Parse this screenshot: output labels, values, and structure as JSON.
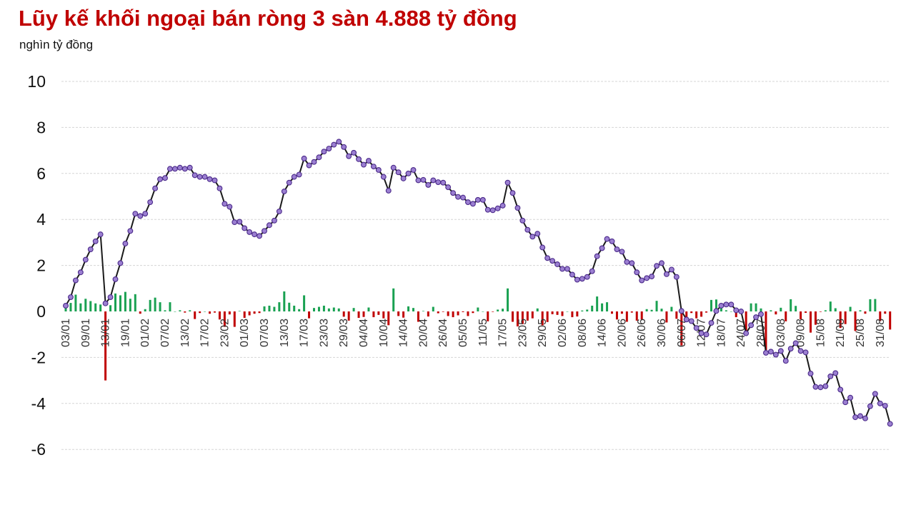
{
  "title": "Lũy kế khối ngoại bán ròng 3 sàn 4.888 tỷ đồng",
  "subtitle": "nghìn tỷ đồng",
  "colors": {
    "title": "#c00000",
    "positive_bar": "#1aa152",
    "negative_bar": "#c00000",
    "line": "#1a1a1a",
    "marker_fill": "#9b7fd1",
    "marker_stroke": "#4b2a8a",
    "grid": "#d5d5d5"
  },
  "chart_data": {
    "type": "bar+line",
    "yticks": [
      10,
      8,
      6,
      4,
      2,
      0,
      -2,
      -4,
      -6
    ],
    "ylim": [
      -6.5,
      10.5
    ],
    "grid": "horizontal dashed",
    "legend": "none",
    "xtick_labels": [
      "03/01",
      "09/01",
      "13/01",
      "19/01",
      "01/02",
      "07/02",
      "13/02",
      "17/02",
      "23/02",
      "01/03",
      "07/03",
      "13/03",
      "17/03",
      "23/03",
      "29/03",
      "04/04",
      "10/04",
      "14/04",
      "20/04",
      "26/04",
      "05/05",
      "11/05",
      "17/05",
      "23/05",
      "29/05",
      "02/06",
      "08/06",
      "14/06",
      "20/06",
      "26/06",
      "30/06",
      "06/07",
      "12/07",
      "18/07",
      "24/07",
      "28/07",
      "03/08",
      "09/08",
      "15/08",
      "21/08",
      "25/08",
      "31/08"
    ],
    "xtick_positions": [
      0,
      4,
      8,
      12,
      16,
      20,
      24,
      28,
      32,
      36,
      40,
      44,
      48,
      52,
      56,
      60,
      64,
      68,
      72,
      76,
      80,
      84,
      88,
      92,
      96,
      100,
      104,
      108,
      112,
      116,
      120,
      124,
      128,
      132,
      136,
      140,
      144,
      148,
      152,
      156,
      160,
      164
    ],
    "cumulative": [
      0.25,
      0.62,
      1.35,
      1.7,
      2.25,
      2.7,
      3.05,
      3.35,
      0.35,
      0.62,
      1.4,
      2.1,
      2.95,
      3.5,
      4.25,
      4.15,
      4.25,
      4.75,
      5.35,
      5.75,
      5.8,
      6.2,
      6.2,
      6.25,
      6.2,
      6.25,
      5.92,
      5.85,
      5.85,
      5.75,
      5.7,
      5.35,
      4.68,
      4.55,
      3.88,
      3.9,
      3.62,
      3.45,
      3.35,
      3.28,
      3.5,
      3.75,
      3.95,
      4.35,
      5.22,
      5.6,
      5.85,
      5.95,
      6.65,
      6.35,
      6.5,
      6.7,
      6.95,
      7.08,
      7.25,
      7.38,
      7.15,
      6.75,
      6.9,
      6.62,
      6.38,
      6.55,
      6.3,
      6.15,
      5.85,
      5.25,
      6.25,
      6.05,
      5.78,
      6.0,
      6.15,
      5.7,
      5.72,
      5.5,
      5.7,
      5.62,
      5.6,
      5.4,
      5.15,
      4.98,
      4.95,
      4.75,
      4.68,
      4.85,
      4.85,
      4.42,
      4.4,
      4.48,
      4.6,
      5.6,
      5.15,
      4.5,
      3.95,
      3.55,
      3.25,
      3.38,
      2.78,
      2.32,
      2.2,
      2.05,
      1.85,
      1.85,
      1.6,
      1.38,
      1.42,
      1.5,
      1.75,
      2.4,
      2.75,
      3.15,
      3.05,
      2.7,
      2.6,
      2.15,
      2.1,
      1.7,
      1.35,
      1.45,
      1.52,
      1.98,
      2.1,
      1.62,
      1.82,
      1.5,
      0.02,
      -0.35,
      -0.42,
      -0.72,
      -0.95,
      -1.0,
      -0.5,
      0.02,
      0.25,
      0.3,
      0.3,
      0.05,
      0.0,
      -0.95,
      -0.6,
      -0.25,
      -0.12,
      -1.8,
      -1.75,
      -1.88,
      -1.72,
      -2.15,
      -1.62,
      -1.38,
      -1.72,
      -1.78,
      -2.7,
      -3.28,
      -3.3,
      -3.25,
      -2.82,
      -2.68,
      -3.4,
      -3.95,
      -3.75,
      -4.6,
      -4.55,
      -4.65,
      -4.12,
      -3.58,
      -4.0,
      -4.1,
      -4.888
    ],
    "daily": [
      0.25,
      0.37,
      0.73,
      0.35,
      0.55,
      0.45,
      0.35,
      0.3,
      -3.0,
      0.27,
      0.78,
      0.7,
      0.85,
      0.55,
      0.75,
      -0.1,
      0.1,
      0.5,
      0.6,
      0.4,
      0.05,
      0.4,
      0.0,
      0.05,
      -0.05,
      0.05,
      -0.33,
      -0.07,
      0.0,
      -0.1,
      -0.05,
      -0.35,
      -0.67,
      -0.13,
      -0.67,
      0.02,
      -0.28,
      -0.17,
      -0.1,
      -0.07,
      0.22,
      0.25,
      0.2,
      0.4,
      0.87,
      0.38,
      0.25,
      0.1,
      0.7,
      -0.3,
      0.15,
      0.2,
      0.25,
      0.13,
      0.17,
      0.13,
      -0.23,
      -0.4,
      0.15,
      -0.28,
      -0.24,
      0.17,
      -0.25,
      -0.15,
      -0.3,
      -0.6,
      1.0,
      -0.2,
      -0.27,
      0.22,
      0.15,
      -0.45,
      0.02,
      -0.22,
      0.2,
      -0.08,
      -0.02,
      -0.2,
      -0.25,
      -0.17,
      -0.03,
      -0.2,
      -0.07,
      0.17,
      0.0,
      -0.43,
      -0.02,
      0.08,
      0.12,
      1.0,
      -0.45,
      -0.65,
      -0.55,
      -0.4,
      -0.3,
      0.13,
      -0.6,
      -0.46,
      -0.12,
      -0.15,
      -0.2,
      0.0,
      -0.25,
      -0.22,
      0.04,
      0.08,
      0.25,
      0.65,
      0.35,
      0.4,
      -0.1,
      -0.35,
      -0.1,
      -0.45,
      -0.05,
      -0.4,
      -0.35,
      0.1,
      0.07,
      0.46,
      0.12,
      -0.48,
      0.2,
      -0.32,
      -1.48,
      -0.37,
      -0.07,
      -0.3,
      -0.23,
      -0.05,
      0.5,
      0.52,
      0.23,
      0.05,
      0.0,
      -0.25,
      -0.05,
      -0.95,
      0.35,
      0.35,
      0.13,
      -1.68,
      0.05,
      -0.13,
      0.16,
      -0.43,
      0.53,
      0.24,
      -0.34,
      -0.06,
      -0.92,
      -0.58,
      -0.02,
      0.05,
      0.43,
      0.14,
      -0.72,
      -0.55,
      0.2,
      -0.85,
      0.05,
      -0.1,
      0.53,
      0.54,
      -0.42,
      -0.1,
      -0.788
    ]
  }
}
